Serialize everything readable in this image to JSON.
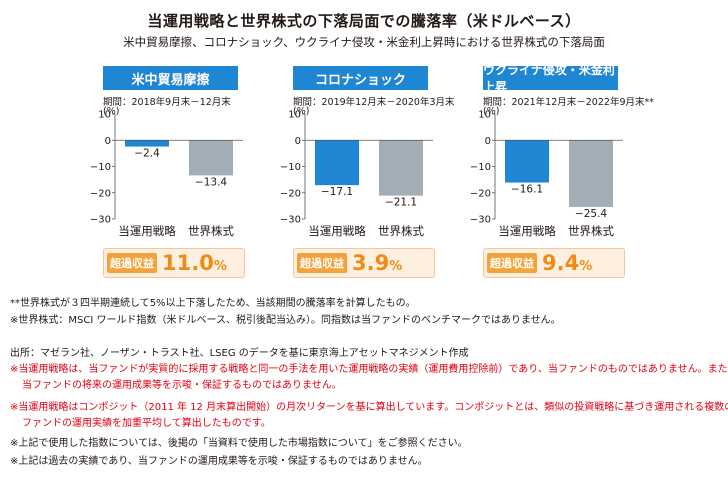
{
  "title": "当運用戦略と世界株式の下落局面での騰落率（米ドルベース）",
  "subtitle": "米中貿易摩擦、コロナショック、ウクライナ侵攻・米金利上昇時における世界株式の下落局面",
  "colors": {
    "strategy": "#1f86d4",
    "world": "#a2adb5",
    "header": "#1f86d4",
    "accent": "#f08c14"
  },
  "chart_data": [
    {
      "type": "bar",
      "title": "米中貿易摩擦",
      "period": "期間：2018年9月末－12月末",
      "unit": "(%)",
      "categories": [
        "当運用戦略",
        "世界株式"
      ],
      "values": [
        -2.4,
        -13.4
      ],
      "value_labels": [
        "−2.4",
        "−13.4"
      ],
      "ylim": [
        -30,
        10
      ],
      "yticks": [
        10,
        0,
        -10,
        -20,
        -30
      ],
      "ytick_labels": [
        "10",
        "0",
        "−10",
        "−20",
        "−30"
      ],
      "excess_label": "超過収益",
      "excess_value": "11.0",
      "excess_unit": "%"
    },
    {
      "type": "bar",
      "title": "コロナショック",
      "period": "期間：2019年12月末－2020年3月末",
      "unit": "(%)",
      "categories": [
        "当運用戦略",
        "世界株式"
      ],
      "values": [
        -17.1,
        -21.1
      ],
      "value_labels": [
        "−17.1",
        "−21.1"
      ],
      "ylim": [
        -30,
        10
      ],
      "yticks": [
        10,
        0,
        -10,
        -20,
        -30
      ],
      "ytick_labels": [
        "10",
        "0",
        "−10",
        "−20",
        "−30"
      ],
      "excess_label": "超過収益",
      "excess_value": "3.9",
      "excess_unit": "%"
    },
    {
      "type": "bar",
      "title": "ウクライナ侵攻・米金利上昇",
      "period": "期間：2021年12月末－2022年9月末**",
      "unit": "(%)",
      "categories": [
        "当運用戦略",
        "世界株式"
      ],
      "values": [
        -16.1,
        -25.4
      ],
      "value_labels": [
        "−16.1",
        "−25.4"
      ],
      "ylim": [
        -30,
        10
      ],
      "yticks": [
        10,
        0,
        -10,
        -20,
        -30
      ],
      "ytick_labels": [
        "10",
        "0",
        "−10",
        "−20",
        "−30"
      ],
      "excess_label": "超過収益",
      "excess_value": "9.4",
      "excess_unit": "%"
    }
  ],
  "notes": {
    "n1": "**世界株式が３四半期連続して5%以上下落したため、当該期間の騰落率を計算したもの。",
    "n2": "※世界株式：MSCI ワールド指数（米ドルベース、税引後配当込み）。同指数は当ファンドのベンチマークではありません。",
    "n3": "出所：マゼラン社、ノーザン・トラスト社、LSEG のデータを基に東京海上アセットマネジメント作成",
    "n4": "※当運用戦略は、当ファンドが実質的に採用する戦略と同一の手法を用いた運用戦略の実績（運用費用控除前）であり、当ファンドのものではありません。また、",
    "n5": "当ファンドの将来の運用成果等を示唆・保証するものではありません。",
    "n6": "※当運用戦略はコンポジット（2011 年 12 月末算出開始）の月次リターンを基に算出しています。コンポジットとは、類似の投資戦略に基づき運用される複数の",
    "n7": "ファンドの運用実績を加重平均して算出したものです。",
    "n8": "※上記で使用した指数については、後掲の「当資料で使用した市場指数について」をご参照ください。",
    "n9": "※上記は過去の実績であり、当ファンドの運用成果等を示唆・保証するものではありません。"
  }
}
